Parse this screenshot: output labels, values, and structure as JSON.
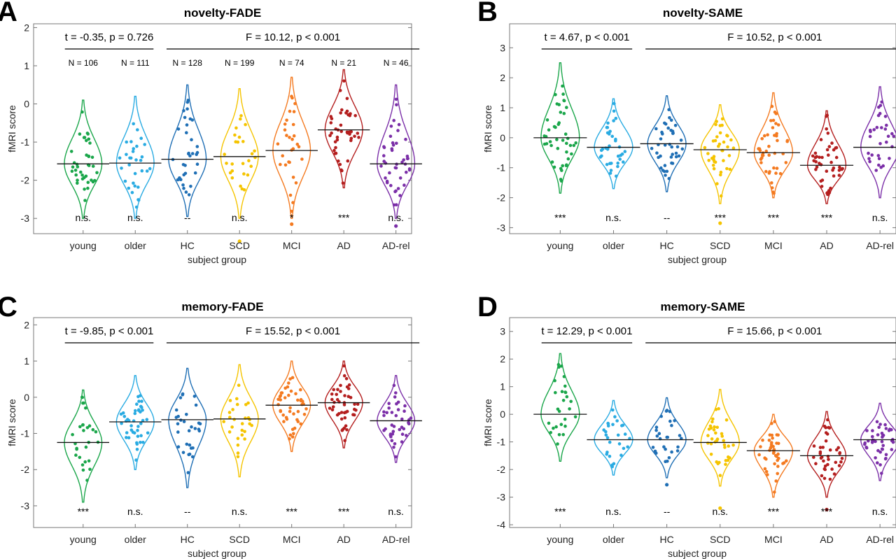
{
  "chart_data": [
    {
      "type": "violin",
      "panel": "A",
      "title": "novelty-FADE",
      "xlabel": "subject group",
      "ylabel": "fMRI score",
      "ylim": [
        -3.4,
        2.1
      ],
      "yticks": [
        -3,
        -2,
        -1,
        0,
        1,
        2
      ],
      "categories": [
        "young",
        "older",
        "HC",
        "SCD",
        "MCI",
        "AD",
        "AD-rel"
      ],
      "colors": [
        "#1aa64a",
        "#29abe2",
        "#1f6fb5",
        "#f5c400",
        "#f47a20",
        "#b41e1e",
        "#7b2fa8"
      ],
      "medians": [
        -1.57,
        -1.55,
        -1.45,
        -1.38,
        -1.22,
        -0.68,
        -1.57
      ],
      "ranges": [
        [
          -3.0,
          0.1
        ],
        [
          -3.0,
          0.2
        ],
        [
          -2.95,
          0.5
        ],
        [
          -3.0,
          0.4
        ],
        [
          -3.0,
          0.7
        ],
        [
          -2.2,
          0.9
        ],
        [
          -3.0,
          0.5
        ]
      ],
      "outliers": [
        [],
        [],
        [],
        [
          -3.6
        ],
        [
          -3.15
        ],
        [],
        [
          -3.2
        ]
      ],
      "n": [
        "N = 106",
        "N = 111",
        "N = 128",
        "N = 199",
        "N = 74",
        "N = 21",
        "N = 46"
      ],
      "significance": [
        "n.s.",
        "n.s.",
        "--",
        "n.s.",
        "*",
        "***",
        "n.s."
      ],
      "test_left": "t = -0.35, p = 0.726",
      "test_right": "F = 10.12, p < 0.001"
    },
    {
      "type": "violin",
      "panel": "B",
      "title": "novelty-SAME",
      "xlabel": "subject group",
      "ylabel": "fMRI score",
      "ylim": [
        -3.2,
        3.8
      ],
      "yticks": [
        -3,
        -2,
        -1,
        0,
        1,
        2,
        3
      ],
      "categories": [
        "young",
        "older",
        "HC",
        "SCD",
        "MCI",
        "AD",
        "AD-rel"
      ],
      "colors": [
        "#1aa64a",
        "#29abe2",
        "#1f6fb5",
        "#f5c400",
        "#f47a20",
        "#b41e1e",
        "#7b2fa8"
      ],
      "medians": [
        0.0,
        -0.32,
        -0.2,
        -0.4,
        -0.5,
        -0.92,
        -0.32
      ],
      "ranges": [
        [
          -1.85,
          2.5
        ],
        [
          -1.7,
          1.3
        ],
        [
          -1.8,
          1.4
        ],
        [
          -2.2,
          1.1
        ],
        [
          -2.0,
          1.5
        ],
        [
          -2.2,
          0.9
        ],
        [
          -2.0,
          1.7
        ]
      ],
      "outliers": [
        [],
        [],
        [],
        [
          -2.85
        ],
        [],
        [],
        []
      ],
      "n": [],
      "significance": [
        "***",
        "n.s.",
        "--",
        "***",
        "***",
        "***",
        "n.s."
      ],
      "test_left": "t = 4.67, p < 0.001",
      "test_right": "F = 10.52, p < 0.001"
    },
    {
      "type": "violin",
      "panel": "C",
      "title": "memory-FADE",
      "xlabel": "subject group",
      "ylabel": "fMRI score",
      "ylim": [
        -3.6,
        2.2
      ],
      "yticks": [
        -3,
        -2,
        -1,
        0,
        1,
        2
      ],
      "categories": [
        "young",
        "older",
        "HC",
        "SCD",
        "MCI",
        "AD",
        "AD-rel"
      ],
      "colors": [
        "#1aa64a",
        "#29abe2",
        "#1f6fb5",
        "#f5c400",
        "#f47a20",
        "#b41e1e",
        "#7b2fa8"
      ],
      "medians": [
        -1.25,
        -0.68,
        -0.62,
        -0.6,
        -0.22,
        -0.15,
        -0.65
      ],
      "ranges": [
        [
          -2.9,
          0.2
        ],
        [
          -2.0,
          0.6
        ],
        [
          -2.5,
          0.8
        ],
        [
          -2.2,
          0.9
        ],
        [
          -1.5,
          1.0
        ],
        [
          -1.4,
          1.0
        ],
        [
          -1.8,
          0.6
        ]
      ],
      "outliers": [
        [],
        [],
        [],
        [],
        [],
        [],
        []
      ],
      "n": [],
      "significance": [
        "***",
        "n.s.",
        "--",
        "n.s.",
        "***",
        "***",
        "n.s."
      ],
      "test_left": "t = -9.85, p < 0.001",
      "test_right": "F = 15.52, p < 0.001"
    },
    {
      "type": "violin",
      "panel": "D",
      "title": "memory-SAME",
      "xlabel": "subject group",
      "ylabel": "fMRI score",
      "ylim": [
        -4.1,
        3.5
      ],
      "yticks": [
        -4,
        -3,
        -2,
        -1,
        0,
        1,
        2,
        3
      ],
      "categories": [
        "young",
        "older",
        "HC",
        "SCD",
        "MCI",
        "AD",
        "AD-rel"
      ],
      "colors": [
        "#1aa64a",
        "#29abe2",
        "#1f6fb5",
        "#f5c400",
        "#f47a20",
        "#b41e1e",
        "#7b2fa8"
      ],
      "medians": [
        0.0,
        -0.92,
        -0.92,
        -1.02,
        -1.32,
        -1.5,
        -0.92
      ],
      "ranges": [
        [
          -1.7,
          2.2
        ],
        [
          -2.2,
          0.5
        ],
        [
          -2.3,
          0.6
        ],
        [
          -2.6,
          0.9
        ],
        [
          -3.0,
          0.0
        ],
        [
          -3.0,
          0.1
        ],
        [
          -2.4,
          0.4
        ]
      ],
      "outliers": [
        [],
        [],
        [
          -2.55
        ],
        [
          -3.4
        ],
        [],
        [
          -3.45
        ],
        []
      ],
      "n": [],
      "significance": [
        "***",
        "n.s.",
        "--",
        "n.s.",
        "***",
        "***",
        "n.s."
      ],
      "test_left": "t = 12.29, p < 0.001",
      "test_right": "F = 15.66, p < 0.001"
    }
  ]
}
